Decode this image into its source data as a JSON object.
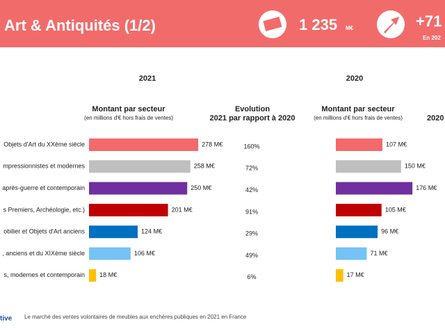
{
  "header": {
    "title": "Art & Antiquités (1/2)",
    "total": "1 235",
    "total_unit": "M€",
    "growth": "+71",
    "growth_note": "En 202"
  },
  "chart_data": [
    {
      "type": "bar",
      "title": "2021",
      "subtitle": "Montant  par secteur",
      "note": "(en millions d'€ hors frais de ventes)",
      "categories": [
        "Objets d'Art du XXème siècle",
        "mpressionnistes et modernes",
        "après-guerre et contemporain",
        "s Premiers, Archéologie, etc.)",
        "obilier et Objets d'Art anciens",
        ", anciens et du XIXème siècle",
        "s, modernes et contemporain"
      ],
      "values": [
        278,
        258,
        250,
        201,
        124,
        106,
        18
      ],
      "value_labels": [
        "278  M€",
        "258  M€",
        "250  M€",
        "201  M€",
        "124  M€",
        "106  M€",
        "18  M€"
      ],
      "colors": [
        "#f4696b",
        "#bfbfbf",
        "#7030a0",
        "#c00000",
        "#0070c0",
        "#74c3f4",
        "#ffc000"
      ]
    },
    {
      "type": "bar",
      "title": "2020",
      "subtitle": "Montant  par secteur",
      "note": "(en millions d'€ hors frais de ventes)",
      "side_label": "2020",
      "values": [
        107,
        150,
        176,
        105,
        96,
        71,
        17
      ],
      "value_labels": [
        "107  M€",
        "150  M€",
        "176  M€",
        "105  M€",
        "96  M€",
        "71  M€",
        "17  M€"
      ],
      "colors": [
        "#f4696b",
        "#bfbfbf",
        "#7030a0",
        "#c00000",
        "#0070c0",
        "#74c3f4",
        "#ffc000"
      ]
    }
  ],
  "evolution": {
    "title": "Evolution",
    "subtitle": "2021 par rapport à 2020",
    "values": [
      160,
      72,
      42,
      91,
      29,
      49,
      6
    ],
    "value_labels": [
      "160%",
      "72%",
      "42%",
      "91%",
      "29%",
      "49%",
      "6%"
    ]
  },
  "footer": {
    "logo": "tive",
    "text": "Le marché des ventes volontaires de meubles aux enchères publiques en 2021 en France"
  }
}
